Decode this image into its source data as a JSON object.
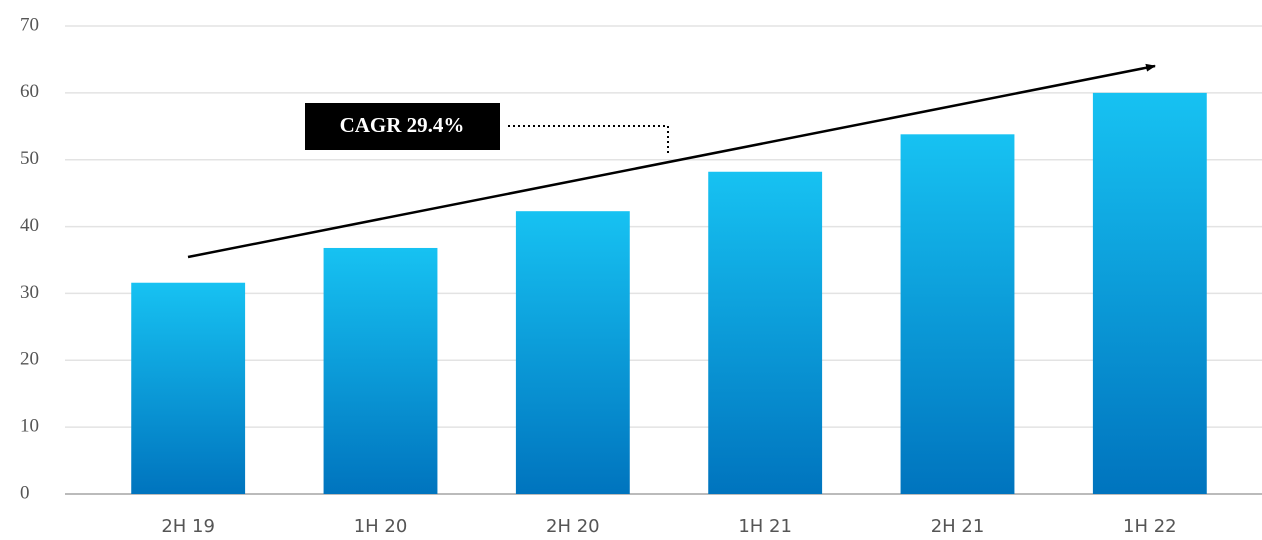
{
  "chart_data": {
    "type": "bar",
    "categories": [
      "2H 19",
      "1H 20",
      "2H 20",
      "1H 21",
      "2H 21",
      "1H 22"
    ],
    "values": [
      31.6,
      36.8,
      42.3,
      48.2,
      53.8,
      60.0
    ],
    "gradient": [
      "#17c2f2",
      "#0074be"
    ],
    "ylim": [
      0,
      70
    ],
    "yticks": [
      0,
      10,
      20,
      30,
      40,
      50,
      60,
      70
    ],
    "grid": true,
    "annotation": "CAGR 29.4%"
  }
}
